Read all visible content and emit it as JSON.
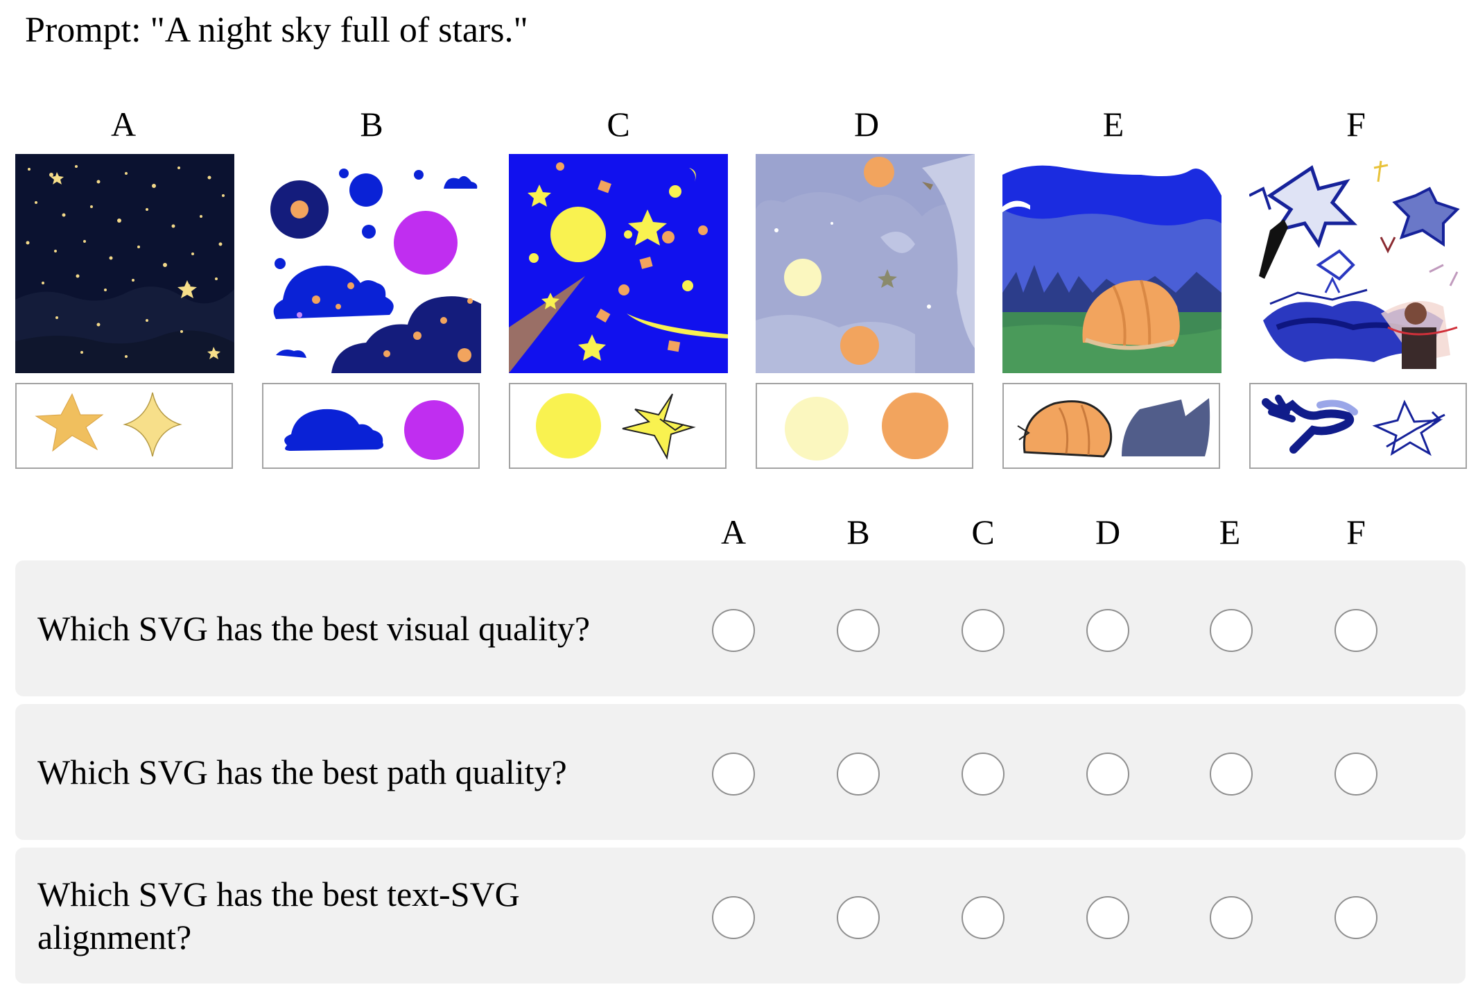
{
  "prompt": "Prompt: \"A night sky full of stars.\"",
  "options": [
    "A",
    "B",
    "C",
    "D",
    "E",
    "F"
  ],
  "thumbnails": [
    {
      "label": "A",
      "icon": "starry-night-sky-image",
      "component_icons": [
        "star-shape-icon",
        "four-point-star-icon"
      ]
    },
    {
      "label": "B",
      "icon": "cartoon-clouds-planets-image",
      "component_icons": [
        "cloud-shape-icon",
        "magenta-circle-icon"
      ]
    },
    {
      "label": "C",
      "icon": "blue-sky-moon-stars-image",
      "component_icons": [
        "yellow-circle-icon",
        "yellow-star-icon"
      ]
    },
    {
      "label": "D",
      "icon": "pale-lavender-sky-image",
      "component_icons": [
        "pale-yellow-circle-icon",
        "orange-circle-icon"
      ]
    },
    {
      "label": "E",
      "icon": "landscape-shell-image",
      "component_icons": [
        "orange-shell-icon",
        "slate-mountain-icon"
      ]
    },
    {
      "label": "F",
      "icon": "scribbled-stars-image",
      "component_icons": [
        "navy-scribble-icon",
        "outline-star-scribble-icon"
      ]
    }
  ],
  "questions": [
    {
      "text": "Which SVG has the best visual quality?",
      "selected": null
    },
    {
      "text": "Which SVG has the best path quality?",
      "selected": null
    },
    {
      "text": "Which SVG has the best text-SVG alignment?",
      "selected": null
    }
  ],
  "colors": {
    "row_background": "#f1f1f1",
    "radio_border": "#8f8f8f",
    "thumbnail_border": "#a3a3a3",
    "star_gold": "#f0bf5e",
    "star_pale": "#f7df8a",
    "cloud_blue": "#0a22d6",
    "magenta": "#c02ef0",
    "yellow": "#f9f250",
    "orange": "#f2a45e",
    "sky_blue": "#1111ee",
    "night_navy": "#0b1230"
  }
}
